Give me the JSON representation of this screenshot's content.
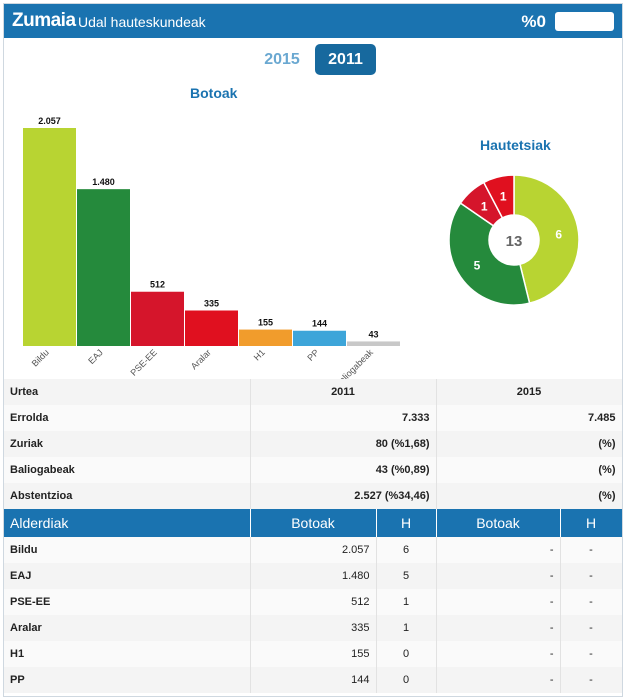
{
  "header": {
    "town": "Zumaia",
    "subtitle": "Udal hauteskundeak",
    "percent": "%0"
  },
  "years": {
    "y2015": "2015",
    "y2011": "2011",
    "selected": "2011"
  },
  "bar_title": "Botoak",
  "pie_title": "Hautetsiak",
  "pie_center": "13",
  "colors": {
    "Bildu": "#b8d432",
    "EAJ": "#258a3c",
    "PSE-EE": "#d5152b",
    "Aralar": "#e0101f",
    "H1": "#f19c2c",
    "PP": "#3da5d9",
    "Baliogabeak": "#c8c8c8"
  },
  "chart_data": [
    {
      "type": "bar",
      "title": "Botoak",
      "categories": [
        "Bildu",
        "EAJ",
        "PSE-EE",
        "Aralar",
        "H1",
        "PP",
        "Baliogabeak"
      ],
      "values": [
        2057,
        1480,
        512,
        335,
        155,
        144,
        43
      ],
      "labels": [
        "2.057",
        "1.480",
        "512",
        "335",
        "155",
        "144",
        "43"
      ],
      "ylim": [
        0,
        2057
      ]
    },
    {
      "type": "pie",
      "title": "Hautetsiak",
      "categories": [
        "Bildu",
        "EAJ",
        "PSE-EE",
        "Aralar"
      ],
      "values": [
        6,
        5,
        1,
        1
      ],
      "total": 13
    }
  ],
  "stats": {
    "headers": [
      "Urtea",
      "2011",
      "2015"
    ],
    "rows": [
      {
        "label": "Errolda",
        "v2011": "7.333",
        "v2015": "7.485"
      },
      {
        "label": "Zuriak",
        "v2011": "80 (%1,68)",
        "v2015": "(%)"
      },
      {
        "label": "Baliogabeak",
        "v2011": "43 (%0,89)",
        "v2015": "(%)"
      },
      {
        "label": "Abstentzioa",
        "v2011": "2.527 (%34,46)",
        "v2015": "(%)"
      }
    ]
  },
  "parties": {
    "headers": [
      "Alderdiak",
      "Botoak",
      "H",
      "Botoak",
      "H"
    ],
    "rows": [
      {
        "name": "Bildu",
        "votes": "2.057",
        "seats": "6",
        "votes2015": "-",
        "seats2015": "-"
      },
      {
        "name": "EAJ",
        "votes": "1.480",
        "seats": "5",
        "votes2015": "-",
        "seats2015": "-"
      },
      {
        "name": "PSE-EE",
        "votes": "512",
        "seats": "1",
        "votes2015": "-",
        "seats2015": "-"
      },
      {
        "name": "Aralar",
        "votes": "335",
        "seats": "1",
        "votes2015": "-",
        "seats2015": "-"
      },
      {
        "name": "H1",
        "votes": "155",
        "seats": "0",
        "votes2015": "-",
        "seats2015": "-"
      },
      {
        "name": "PP",
        "votes": "144",
        "seats": "0",
        "votes2015": "-",
        "seats2015": "-"
      }
    ]
  }
}
